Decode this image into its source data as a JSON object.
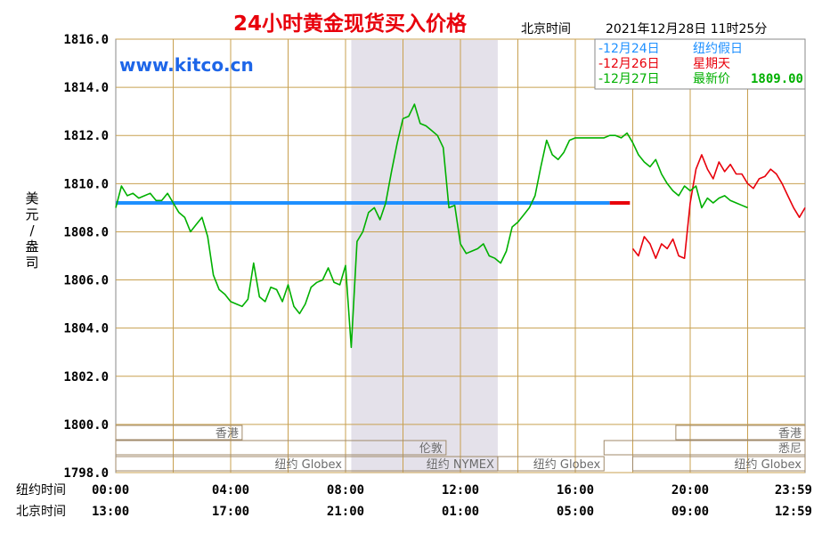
{
  "chart_data": {
    "type": "line",
    "title": "24小时黄金现货买入价格",
    "header_timezone_label": "北京时间",
    "header_datetime": "2021年12月28日 11时25分",
    "watermark": "www.kitco.cn",
    "ylabel": "美元/盎司",
    "ylim": [
      1798.0,
      1816.0
    ],
    "y_ticks": [
      "1816.0",
      "1814.0",
      "1812.0",
      "1810.0",
      "1808.0",
      "1806.0",
      "1804.0",
      "1802.0",
      "1800.0",
      "1798.0"
    ],
    "x_range_hours": [
      0,
      24
    ],
    "x_row_labels": {
      "ny": "纽约时间",
      "bj": "北京时间"
    },
    "x_ticks_ny": [
      "00:00",
      "04:00",
      "08:00",
      "12:00",
      "16:00",
      "20:00",
      "23:59"
    ],
    "x_ticks_bj": [
      "13:00",
      "17:00",
      "21:00",
      "01:00",
      "05:00",
      "09:00",
      "12:59"
    ],
    "legend": [
      {
        "prefix": "-",
        "date": "12月24日",
        "note": "纽约假日",
        "color": "#1e90ff"
      },
      {
        "prefix": "-",
        "date": "12月26日",
        "note": "星期天",
        "color": "#e8000b"
      },
      {
        "prefix": "-",
        "date": "12月27日",
        "note": "最新价",
        "value": "1809.00",
        "color": "#00b000"
      }
    ],
    "series": [
      {
        "name": "12月24日",
        "color": "#1e90ff",
        "x": [
          0,
          17.2
        ],
        "y": [
          1809.2,
          1809.2
        ]
      },
      {
        "name": "12月24日 (延续)",
        "color": "#e8000b",
        "x": [
          17.2,
          17.9
        ],
        "y": [
          1809.2,
          1809.2
        ]
      },
      {
        "name": "12月26日",
        "color": "#e8000b",
        "x": [
          18.0,
          18.2,
          18.4,
          18.6,
          18.8,
          19.0,
          19.2,
          19.4,
          19.6,
          19.8,
          20.0,
          20.2,
          20.4,
          20.6,
          20.8,
          21.0,
          21.2,
          21.4,
          21.6,
          21.8,
          22.0,
          22.2,
          22.4,
          22.6,
          22.8,
          23.0,
          23.2,
          23.4,
          23.6,
          23.8,
          24.0
        ],
        "y": [
          1807.3,
          1807.0,
          1807.8,
          1807.5,
          1806.9,
          1807.5,
          1807.3,
          1807.7,
          1807.0,
          1806.9,
          1809.2,
          1810.6,
          1811.2,
          1810.6,
          1810.2,
          1810.9,
          1810.5,
          1810.8,
          1810.4,
          1810.4,
          1810.0,
          1809.8,
          1810.2,
          1810.3,
          1810.6,
          1810.4,
          1810.0,
          1809.5,
          1809.0,
          1808.6,
          1809.0
        ]
      },
      {
        "name": "12月27日",
        "color": "#00b000",
        "x": [
          0.0,
          0.2,
          0.4,
          0.6,
          0.8,
          1.0,
          1.2,
          1.4,
          1.6,
          1.8,
          2.0,
          2.2,
          2.4,
          2.6,
          2.8,
          3.0,
          3.2,
          3.4,
          3.6,
          3.8,
          4.0,
          4.2,
          4.4,
          4.6,
          4.8,
          5.0,
          5.2,
          5.4,
          5.6,
          5.8,
          6.0,
          6.2,
          6.4,
          6.6,
          6.8,
          7.0,
          7.2,
          7.4,
          7.6,
          7.8,
          8.0,
          8.2,
          8.4,
          8.6,
          8.8,
          9.0,
          9.2,
          9.4,
          9.6,
          9.8,
          10.0,
          10.2,
          10.4,
          10.6,
          10.8,
          11.0,
          11.2,
          11.4,
          11.6,
          11.8,
          12.0,
          12.2,
          12.4,
          12.6,
          12.8,
          13.0,
          13.2,
          13.4,
          13.6,
          13.8,
          14.0,
          14.2,
          14.4,
          14.6,
          14.8,
          15.0,
          15.2,
          15.4,
          15.6,
          15.8,
          16.0,
          16.2,
          16.4,
          16.6,
          16.8,
          17.0,
          17.2,
          17.4,
          17.6,
          17.8,
          18.0,
          18.2,
          18.4,
          18.6,
          18.8,
          19.0,
          19.2,
          19.4,
          19.6,
          19.8,
          20.0,
          20.2,
          20.4,
          20.6,
          20.8,
          21.0,
          21.2,
          21.4,
          21.6,
          21.8,
          22.0
        ],
        "y": [
          1809.0,
          1809.9,
          1809.5,
          1809.6,
          1809.4,
          1809.5,
          1809.6,
          1809.3,
          1809.3,
          1809.6,
          1809.2,
          1808.8,
          1808.6,
          1808.0,
          1808.3,
          1808.6,
          1807.8,
          1806.2,
          1805.6,
          1805.4,
          1805.1,
          1805.0,
          1804.9,
          1805.2,
          1806.7,
          1805.3,
          1805.1,
          1805.7,
          1805.6,
          1805.1,
          1805.8,
          1804.9,
          1804.6,
          1805.0,
          1805.7,
          1805.9,
          1806.0,
          1806.5,
          1805.9,
          1805.8,
          1806.6,
          1803.2,
          1807.6,
          1808.0,
          1808.8,
          1809.0,
          1808.5,
          1809.2,
          1810.5,
          1811.7,
          1812.7,
          1812.8,
          1813.3,
          1812.5,
          1812.4,
          1812.2,
          1812.0,
          1811.5,
          1809.0,
          1809.1,
          1807.5,
          1807.1,
          1807.2,
          1807.3,
          1807.5,
          1807.0,
          1806.9,
          1806.7,
          1807.2,
          1808.2,
          1808.4,
          1808.7,
          1809.0,
          1809.5,
          1810.7,
          1811.8,
          1811.2,
          1811.0,
          1811.3,
          1811.8,
          1811.9,
          1811.9,
          1811.9,
          1811.9,
          1811.9,
          1811.9,
          1812.0,
          1812.0,
          1811.9,
          1812.1,
          1811.7,
          1811.2,
          1810.9,
          1810.7,
          1811.0,
          1810.4,
          1810.0,
          1809.7,
          1809.5,
          1809.9,
          1809.7,
          1809.9,
          1809.0,
          1809.4,
          1809.2,
          1809.4,
          1809.5,
          1809.3,
          1809.2,
          1809.1,
          1809.0
        ]
      }
    ],
    "sessions": [
      {
        "label": "香港",
        "start": 0,
        "end": 4.4,
        "row": 1
      },
      {
        "label": "伦敦",
        "start": 0,
        "end": 11.5,
        "row": 2
      },
      {
        "label": "纽约 Globex",
        "start": 0,
        "end": 8.0,
        "row": 3
      },
      {
        "label": "纽约 NYMEX",
        "start": 8.0,
        "end": 13.3,
        "row": 3
      },
      {
        "label": "纽约 Globex",
        "start": 13.3,
        "end": 17.0,
        "row": 3
      },
      {
        "label": "香港",
        "start": 19.5,
        "end": 24.0,
        "row": 1
      },
      {
        "label": "悉尼",
        "start": 17.0,
        "end": 24.0,
        "row": 2
      },
      {
        "label": "纽约 Globex",
        "start": 18.0,
        "end": 24.0,
        "row": 3
      }
    ],
    "nymex_shade": [
      8.2,
      13.3
    ],
    "grid": true
  }
}
